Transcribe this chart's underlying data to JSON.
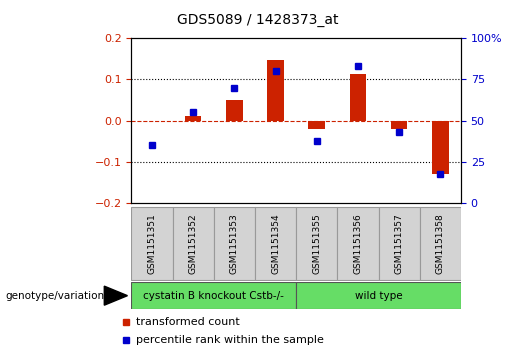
{
  "title": "GDS5089 / 1428373_at",
  "samples": [
    "GSM1151351",
    "GSM1151352",
    "GSM1151353",
    "GSM1151354",
    "GSM1151355",
    "GSM1151356",
    "GSM1151357",
    "GSM1151358"
  ],
  "red_values": [
    0.0,
    0.012,
    0.05,
    0.148,
    -0.02,
    0.112,
    -0.02,
    -0.13
  ],
  "blue_values": [
    35,
    55,
    70,
    80,
    38,
    83,
    43,
    18
  ],
  "ylim_left": [
    -0.2,
    0.2
  ],
  "ylim_right": [
    0,
    100
  ],
  "yticks_left": [
    -0.2,
    -0.1,
    0,
    0.1,
    0.2
  ],
  "yticks_right": [
    0,
    25,
    50,
    75,
    100
  ],
  "yticklabels_right": [
    "0",
    "25",
    "50",
    "75",
    "100%"
  ],
  "group1_label": "cystatin B knockout Cstb-/-",
  "group2_label": "wild type",
  "group1_indices": [
    0,
    1,
    2,
    3
  ],
  "group2_indices": [
    4,
    5,
    6,
    7
  ],
  "group_color": "#66DD66",
  "bar_color": "#CC2200",
  "dot_color": "#0000CC",
  "genotype_label": "genotype/variation",
  "legend_red": "transformed count",
  "legend_blue": "percentile rank within the sample",
  "bar_width": 0.4
}
